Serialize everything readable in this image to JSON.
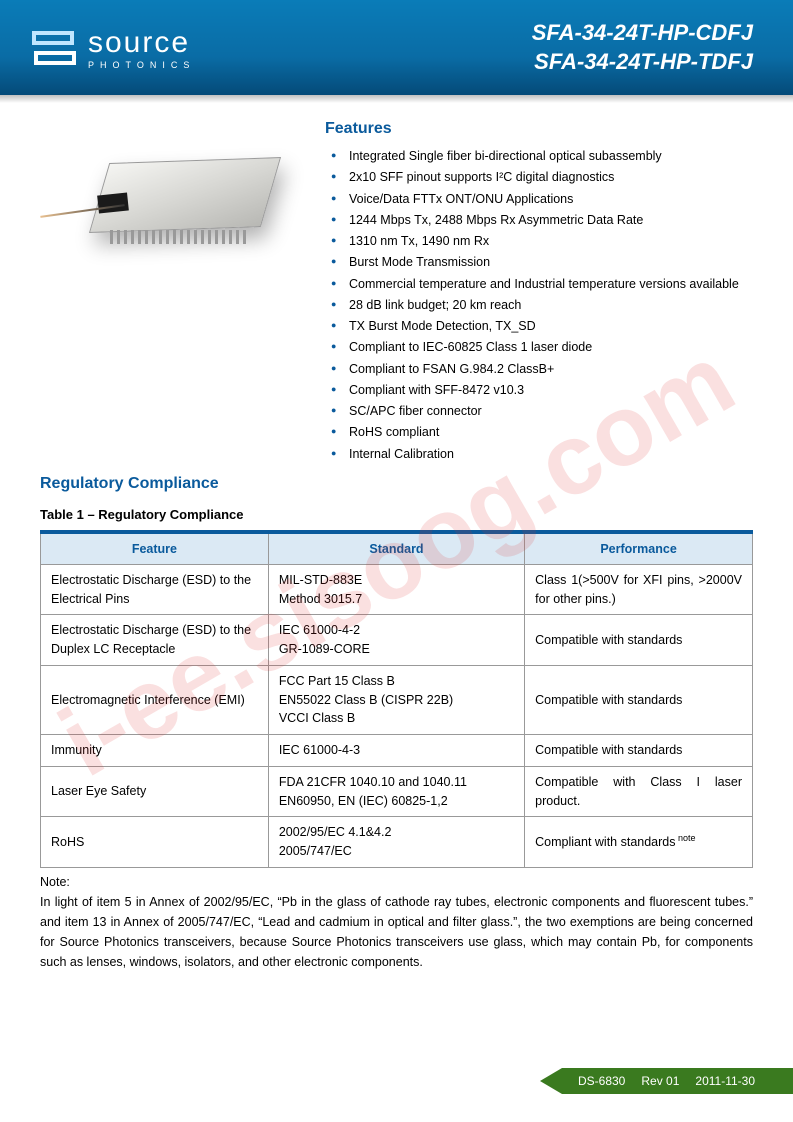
{
  "header": {
    "logo_word": "source",
    "logo_sub": "PHOTONICS",
    "part1": "SFA-34-24T-HP-CDFJ",
    "part2": "SFA-34-24T-HP-TDFJ"
  },
  "watermark": "i-ee.sisoog.com",
  "features": {
    "title": "Features",
    "items": [
      "Integrated Single fiber bi-directional optical subassembly",
      "2x10 SFF pinout supports I²C digital diagnostics",
      "Voice/Data FTTx ONT/ONU Applications",
      "1244 Mbps Tx, 2488 Mbps Rx Asymmetric Data Rate",
      "1310 nm Tx, 1490 nm Rx",
      "Burst Mode Transmission",
      "Commercial temperature and Industrial temperature versions available",
      "28 dB link budget; 20 km reach",
      "TX Burst Mode Detection, TX_SD",
      "Compliant to IEC-60825 Class 1 laser diode",
      "Compliant to FSAN G.984.2 ClassB+",
      "Compliant with SFF-8472 v10.3",
      "SC/APC fiber connector",
      "RoHS compliant",
      "Internal Calibration"
    ]
  },
  "regulatory": {
    "title": "Regulatory Compliance",
    "caption": "Table 1 – Regulatory Compliance",
    "headers": {
      "feature": "Feature",
      "standard": "Standard",
      "performance": "Performance"
    },
    "rows": [
      {
        "feature": "Electrostatic Discharge (ESD) to the Electrical Pins",
        "standard": "MIL-STD-883E\nMethod 3015.7",
        "performance": "Class 1(>500V for XFI pins, >2000V for other pins.)"
      },
      {
        "feature": "Electrostatic Discharge (ESD) to the Duplex LC Receptacle",
        "standard": "IEC 61000-4-2\nGR-1089-CORE",
        "performance": "Compatible with standards"
      },
      {
        "feature": "Electromagnetic Interference (EMI)",
        "standard": "FCC Part 15 Class B\nEN55022 Class B (CISPR 22B)\nVCCI Class B",
        "performance": "Compatible with standards"
      },
      {
        "feature": "Immunity",
        "standard": "IEC 61000-4-3",
        "performance": "Compatible with standards"
      },
      {
        "feature": "Laser Eye Safety",
        "standard": "FDA 21CFR 1040.10 and 1040.11\nEN60950, EN (IEC) 60825-1,2",
        "performance": "Compatible with Class I laser product."
      },
      {
        "feature": "RoHS",
        "standard": "2002/95/EC 4.1&4.2\n2005/747/EC",
        "performance": "Compliant with standards",
        "note_sup": "note"
      }
    ]
  },
  "note": {
    "label": "Note:",
    "text": "In light of item 5 in Annex of 2002/95/EC, “Pb in the glass of cathode ray tubes, electronic components and fluorescent tubes.” and item 13 in Annex of 2005/747/EC, “Lead and cadmium in optical and filter glass.”, the two exemptions are being concerned for Source Photonics transceivers, because Source Photonics transceivers use glass, which may contain Pb, for components such as lenses, windows, isolators, and other electronic components."
  },
  "footer": {
    "doc": "DS-6830",
    "rev": "Rev 01",
    "date": "2011-11-30"
  },
  "colors": {
    "brand_blue": "#0a5a9c",
    "header_grad_top": "#0a7cb8",
    "header_grad_bottom": "#044a78",
    "table_header_bg": "#dbe9f4",
    "footer_green": "#3a7a1f",
    "watermark": "rgba(220,50,50,0.15)"
  }
}
